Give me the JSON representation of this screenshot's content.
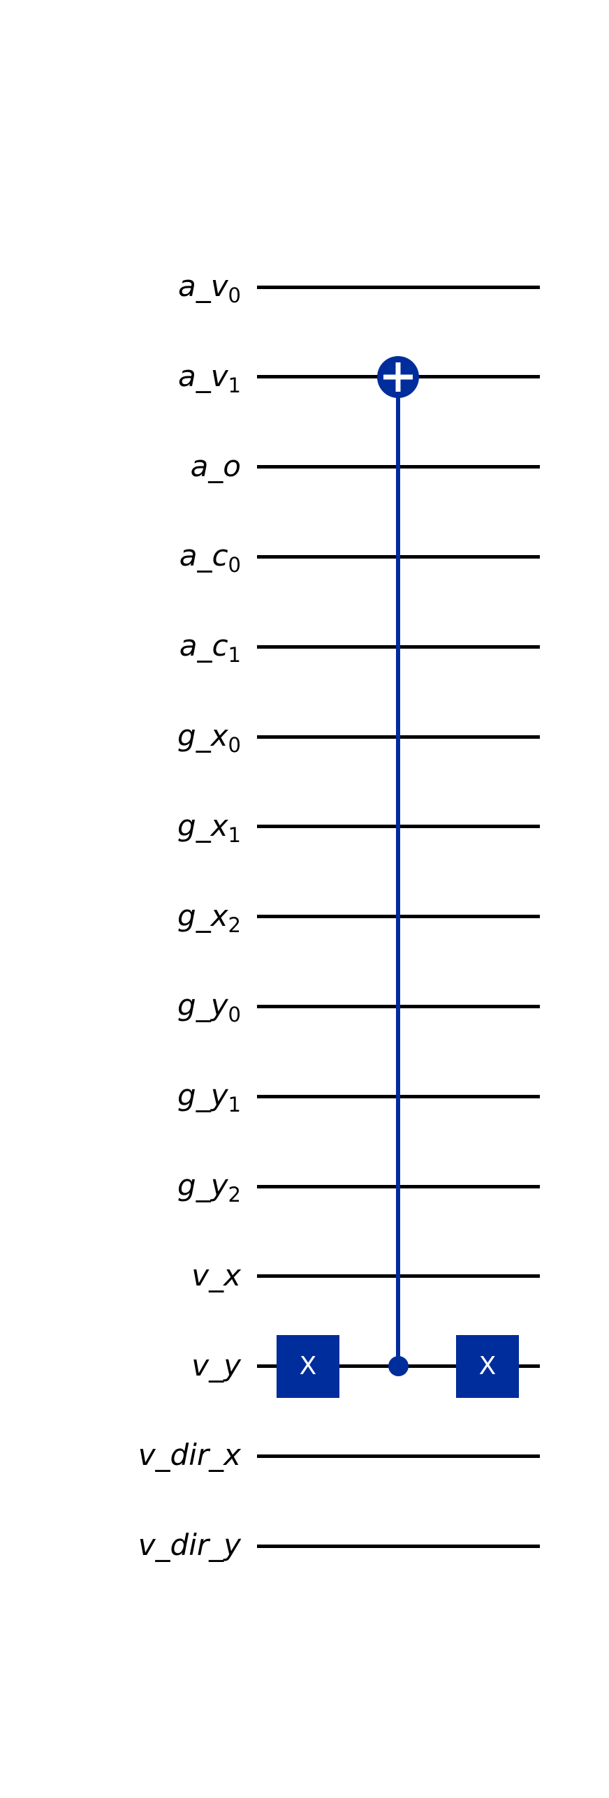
{
  "circuit": {
    "type": "quantum-circuit",
    "background_color": "#ffffff",
    "wire_color": "#000000",
    "label_color": "#000000",
    "gate_color": "#002D9C",
    "gate_text_color": "#ffffff",
    "qubits": [
      {
        "name": "a_v0",
        "base": "a_v",
        "subscript": "0"
      },
      {
        "name": "a_v1",
        "base": "a_v",
        "subscript": "1"
      },
      {
        "name": "a_o",
        "base": "a_o",
        "subscript": ""
      },
      {
        "name": "a_c0",
        "base": "a_c",
        "subscript": "0"
      },
      {
        "name": "a_c1",
        "base": "a_c",
        "subscript": "1"
      },
      {
        "name": "g_x0",
        "base": "g_x",
        "subscript": "0"
      },
      {
        "name": "g_x1",
        "base": "g_x",
        "subscript": "1"
      },
      {
        "name": "g_x2",
        "base": "g_x",
        "subscript": "2"
      },
      {
        "name": "g_y0",
        "base": "g_y",
        "subscript": "0"
      },
      {
        "name": "g_y1",
        "base": "g_y",
        "subscript": "1"
      },
      {
        "name": "g_y2",
        "base": "g_y",
        "subscript": "2"
      },
      {
        "name": "v_x",
        "base": "v_x",
        "subscript": ""
      },
      {
        "name": "v_y",
        "base": "v_y",
        "subscript": ""
      },
      {
        "name": "v_dir_x",
        "base": "v_dir_x",
        "subscript": ""
      },
      {
        "name": "v_dir_y",
        "base": "v_dir_y",
        "subscript": ""
      }
    ],
    "gates": [
      {
        "gate": "X",
        "label": "X",
        "qubit": "v_y",
        "column": 0
      },
      {
        "gate": "CX",
        "control": "v_y",
        "target": "a_v1",
        "target_icon": "plus-in-circle",
        "column": 1
      },
      {
        "gate": "X",
        "label": "X",
        "qubit": "v_y",
        "column": 2
      }
    ]
  }
}
